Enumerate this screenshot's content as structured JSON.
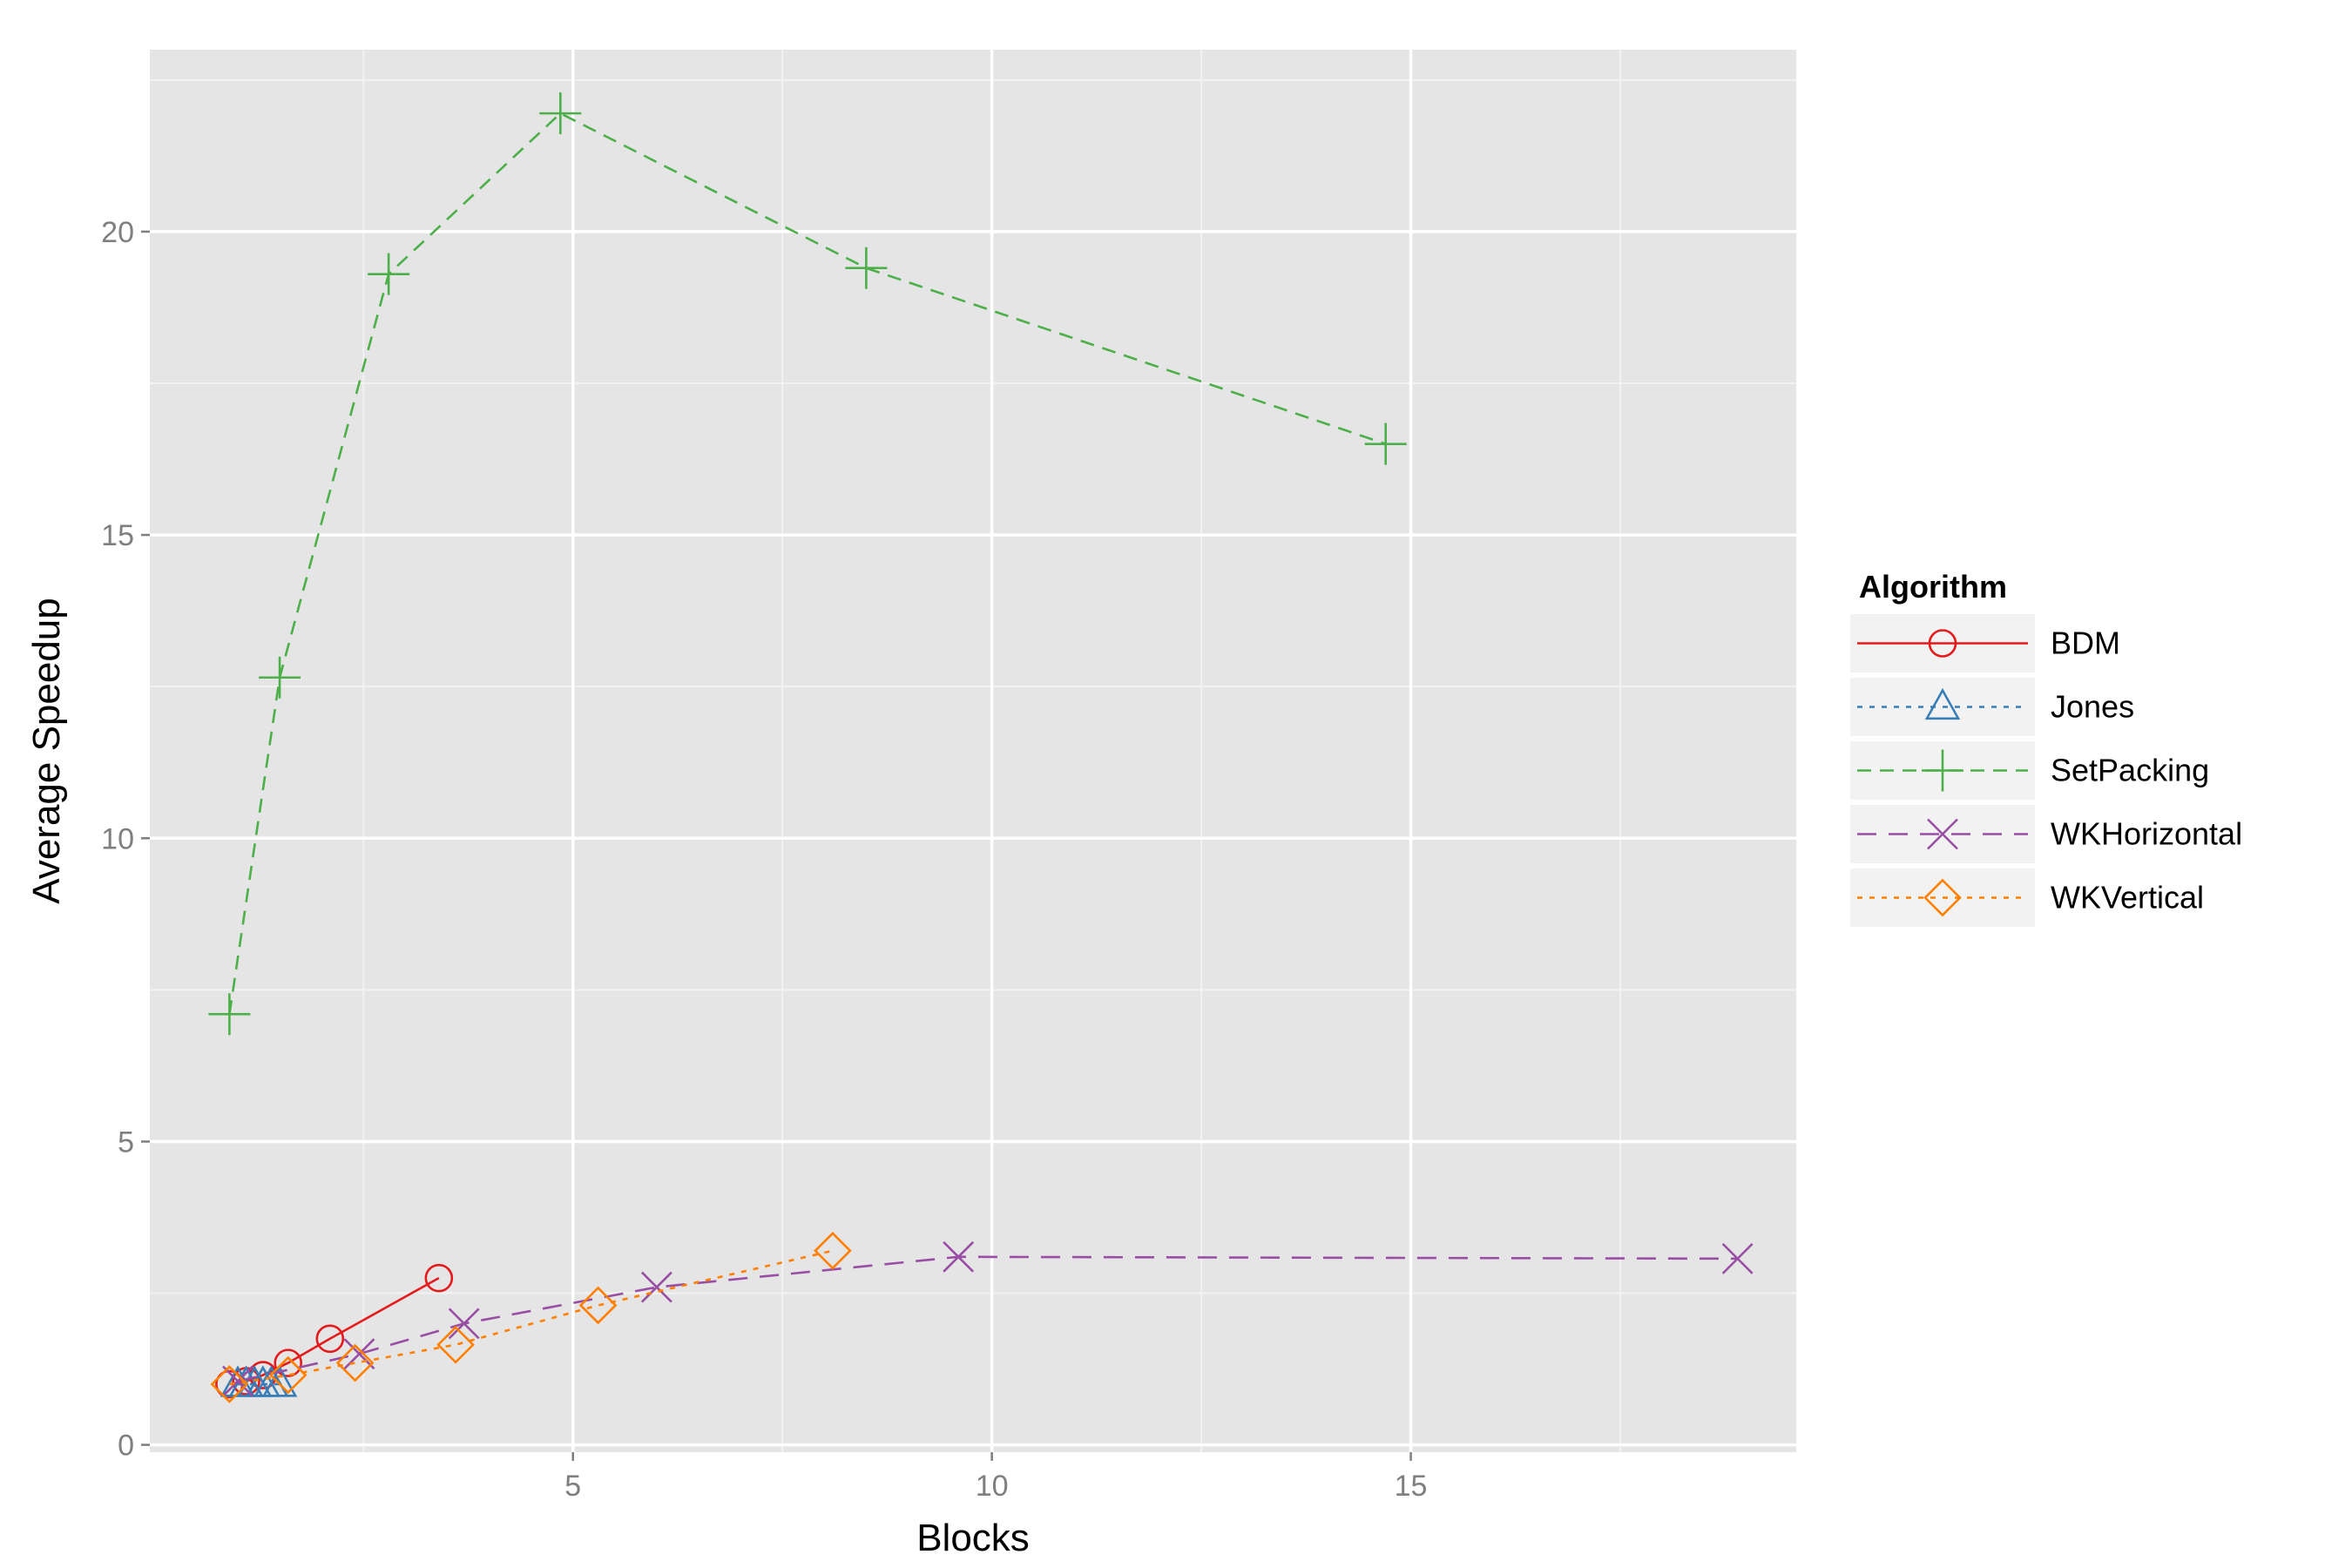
{
  "chart_data": {
    "type": "line",
    "title": "",
    "xlabel": "Blocks",
    "ylabel": "Average Speedup",
    "xlim": [
      -0.05,
      19.6
    ],
    "ylim": [
      -0.12,
      23.0
    ],
    "x_ticks": [
      5,
      10,
      15
    ],
    "y_ticks": [
      0,
      5,
      10,
      15,
      20
    ],
    "grid": true,
    "legend": {
      "title": "Algorithm",
      "position": "right"
    },
    "series": [
      {
        "name": "BDM",
        "color": "#E41A1C",
        "line": "solid",
        "marker": "circle",
        "points": [
          [
            0.9,
            1.0
          ],
          [
            1.1,
            1.05
          ],
          [
            1.3,
            1.15
          ],
          [
            1.6,
            1.35
          ],
          [
            2.1,
            1.75
          ],
          [
            3.4,
            2.75
          ]
        ]
      },
      {
        "name": "Jones",
        "color": "#377EB8",
        "line": "dotted",
        "marker": "triangle",
        "points": [
          [
            1.0,
            1.0
          ],
          [
            1.1,
            1.0
          ],
          [
            1.2,
            1.0
          ],
          [
            1.3,
            1.0
          ],
          [
            1.4,
            1.0
          ],
          [
            1.5,
            1.0
          ]
        ]
      },
      {
        "name": "SetPacking",
        "color": "#4DAF4A",
        "line": "dashed",
        "marker": "plus",
        "points": [
          [
            0.9,
            7.1
          ],
          [
            1.5,
            12.65
          ],
          [
            2.8,
            19.3
          ],
          [
            4.85,
            21.95
          ],
          [
            8.5,
            19.4
          ],
          [
            14.7,
            16.5
          ]
        ]
      },
      {
        "name": "WKHorizontal",
        "color": "#984EA3",
        "line": "longdash",
        "marker": "x",
        "points": [
          [
            1.0,
            1.05
          ],
          [
            2.45,
            1.5
          ],
          [
            3.7,
            2.0
          ],
          [
            6.0,
            2.6
          ],
          [
            9.6,
            3.1
          ],
          [
            18.9,
            3.07
          ]
        ]
      },
      {
        "name": "WKVertical",
        "color": "#FF7F00",
        "line": "dotted",
        "marker": "diamond",
        "points": [
          [
            0.9,
            1.0
          ],
          [
            1.6,
            1.15
          ],
          [
            2.4,
            1.35
          ],
          [
            3.6,
            1.65
          ],
          [
            5.3,
            2.3
          ],
          [
            8.1,
            3.2
          ]
        ]
      }
    ]
  }
}
